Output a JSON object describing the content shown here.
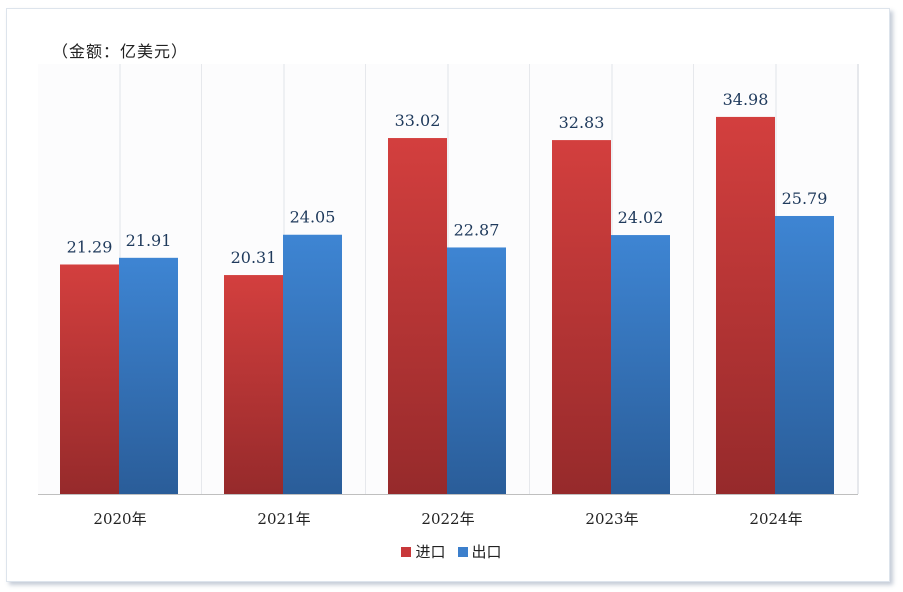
{
  "chart_data": {
    "type": "bar",
    "unit_label": "（金额：亿美元）",
    "categories": [
      "2020年",
      "2021年",
      "2022年",
      "2023年",
      "2024年"
    ],
    "series": [
      {
        "name": "进口",
        "values": [
          21.29,
          20.31,
          33.02,
          32.83,
          34.98
        ],
        "color": "#c8383a"
      },
      {
        "name": "出口",
        "values": [
          21.91,
          24.05,
          22.87,
          24.02,
          25.79
        ],
        "color": "#3c7fcc"
      }
    ],
    "ylim": [
      0,
      40
    ],
    "grid": false,
    "legend_position": "bottom"
  }
}
